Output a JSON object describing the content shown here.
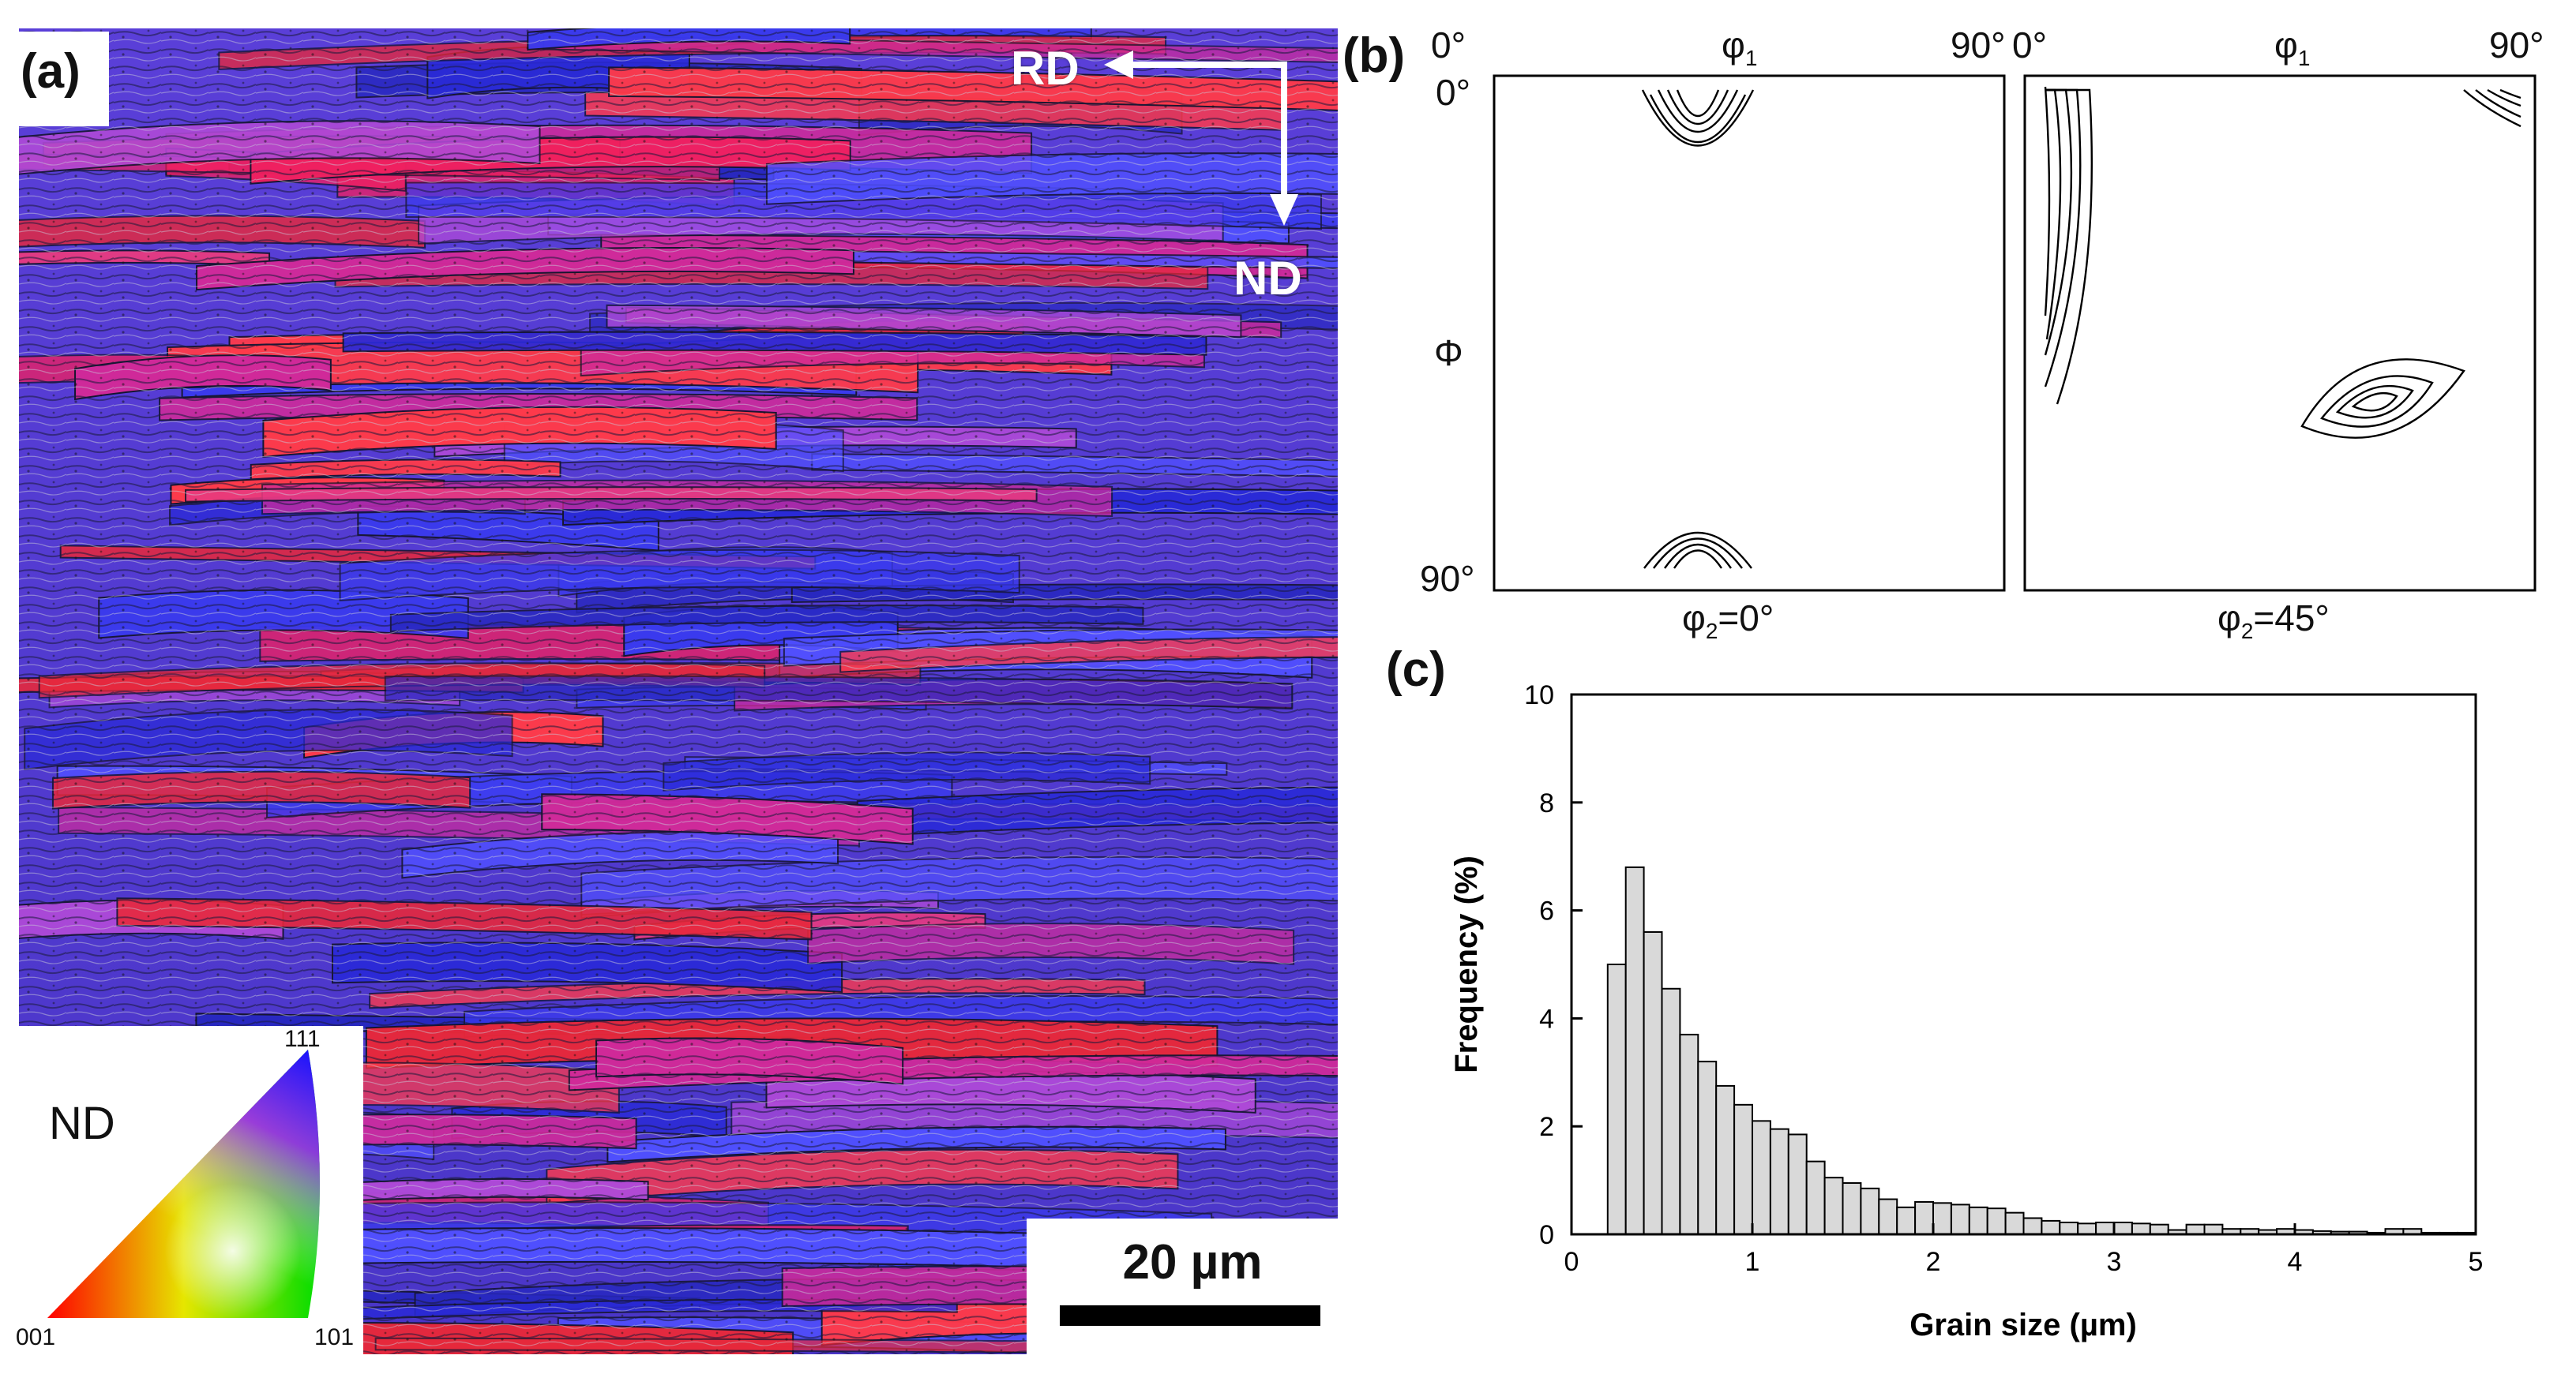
{
  "panel_a": {
    "label": "(a)",
    "rd_label": "RD",
    "nd_label": "ND",
    "scale_bar_label": "20 µm",
    "ipf": {
      "title": "ND",
      "corner_111": "111",
      "corner_001": "001",
      "corner_101": "101"
    }
  },
  "panel_b": {
    "label": "(b)",
    "phi1_symbol": "φ",
    "phi1_subscript": "1",
    "Phi_symbol": "Φ",
    "deg_0": "0°",
    "deg_90": "90°",
    "odf_left_caption_prefix": "φ",
    "odf_left_caption_sub": "2",
    "odf_left_caption_suffix": "=0°",
    "odf_right_caption_prefix": "φ",
    "odf_right_caption_sub": "2",
    "odf_right_caption_suffix": "=45°"
  },
  "panel_c": {
    "label": "(c)"
  },
  "chart_data": {
    "type": "bar",
    "title": "",
    "xlabel": "Grain size (µm)",
    "ylabel": "Frequency (%)",
    "xlim": [
      0,
      5
    ],
    "ylim": [
      0,
      10
    ],
    "xticks": [
      0,
      1,
      2,
      3,
      4,
      5
    ],
    "yticks": [
      0,
      2,
      4,
      6,
      8,
      10
    ],
    "bin_width": 0.1,
    "x": [
      0.25,
      0.35,
      0.45,
      0.55,
      0.65,
      0.75,
      0.85,
      0.95,
      1.05,
      1.15,
      1.25,
      1.35,
      1.45,
      1.55,
      1.65,
      1.75,
      1.85,
      1.95,
      2.05,
      2.15,
      2.25,
      2.35,
      2.45,
      2.55,
      2.65,
      2.75,
      2.85,
      2.95,
      3.05,
      3.15,
      3.25,
      3.35,
      3.45,
      3.55,
      3.65,
      3.75,
      3.85,
      3.95,
      4.05,
      4.15,
      4.25,
      4.35,
      4.45,
      4.55,
      4.65,
      4.75,
      4.85,
      4.95
    ],
    "values": [
      5.0,
      6.8,
      5.6,
      4.55,
      3.7,
      3.2,
      2.75,
      2.4,
      2.1,
      1.95,
      1.85,
      1.35,
      1.05,
      0.95,
      0.85,
      0.65,
      0.5,
      0.6,
      0.58,
      0.55,
      0.5,
      0.48,
      0.4,
      0.3,
      0.25,
      0.22,
      0.2,
      0.22,
      0.22,
      0.2,
      0.18,
      0.08,
      0.18,
      0.18,
      0.1,
      0.1,
      0.08,
      0.1,
      0.08,
      0.06,
      0.05,
      0.05,
      0.03,
      0.1,
      0.1,
      0.03,
      0.03,
      0.03
    ]
  }
}
